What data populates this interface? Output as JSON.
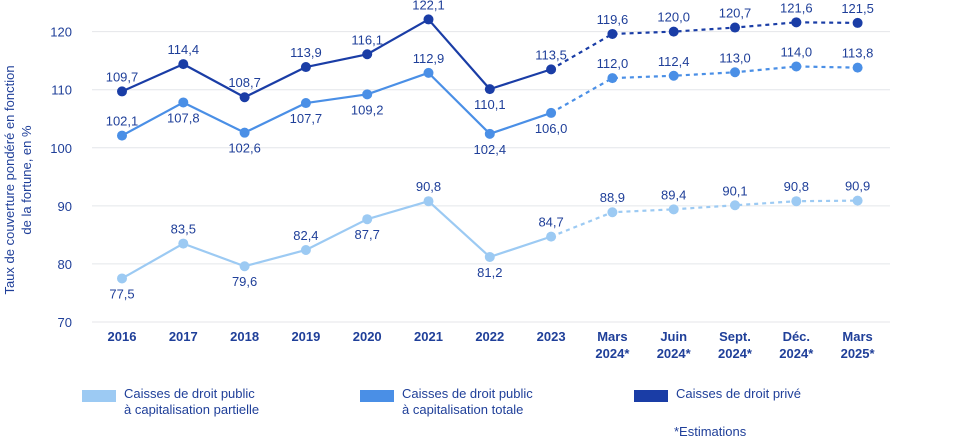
{
  "chart_data": {
    "type": "line",
    "ylabel": "Taux de couverture pondéré en fonction de la fortune, en %",
    "ylabel_lines": [
      "Taux de couverture pondéré en fonction",
      "de la fortune, en %"
    ],
    "ylim": [
      70,
      122
    ],
    "yticks": [
      70,
      80,
      90,
      100,
      110,
      120
    ],
    "grid": true,
    "categories": [
      "2016",
      "2017",
      "2018",
      "2019",
      "2020",
      "2021",
      "2022",
      "2023",
      "Mars 2024*",
      "Juin 2024*",
      "Sept. 2024*",
      "Déc. 2024*",
      "Mars 2025*"
    ],
    "category_lines": [
      [
        "2016"
      ],
      [
        "2017"
      ],
      [
        "2018"
      ],
      [
        "2019"
      ],
      [
        "2020"
      ],
      [
        "2021"
      ],
      [
        "2022"
      ],
      [
        "2023"
      ],
      [
        "Mars",
        "2024*"
      ],
      [
        "Juin",
        "2024*"
      ],
      [
        "Sept.",
        "2024*"
      ],
      [
        "Déc.",
        "2024*"
      ],
      [
        "Mars",
        "2025*"
      ]
    ],
    "estimate_start_index": 7,
    "series": [
      {
        "name": "Caisses de droit public à capitalisation partielle",
        "color": "#9ccaf3",
        "values": [
          77.5,
          83.5,
          79.6,
          82.4,
          87.7,
          90.8,
          81.2,
          84.7,
          88.9,
          89.4,
          90.1,
          90.8,
          90.9
        ],
        "labels": [
          "77,5",
          "83,5",
          "79,6",
          "82,4",
          "87,7",
          "90,8",
          "81,2",
          "84,7",
          "88,9",
          "89,4",
          "90,1",
          "90,8",
          "90,9"
        ],
        "label_pos": [
          "below",
          "above",
          "below",
          "above",
          "below",
          "above",
          "below",
          "above",
          "above",
          "above",
          "above",
          "above",
          "above"
        ]
      },
      {
        "name": "Caisses de droit public à capitalisation totale",
        "color": "#4a8fe6",
        "values": [
          102.1,
          107.8,
          102.6,
          107.7,
          109.2,
          112.9,
          102.4,
          106.0,
          112.0,
          112.4,
          113.0,
          114.0,
          113.8
        ],
        "labels": [
          "102,1",
          "107,8",
          "102,6",
          "107,7",
          "109,2",
          "112,9",
          "102,4",
          "106,0",
          "112,0",
          "112,4",
          "113,0",
          "114,0",
          "113,8"
        ],
        "label_pos": [
          "above",
          "below",
          "below",
          "below",
          "below",
          "above",
          "below",
          "below",
          "above",
          "above",
          "above",
          "above",
          "above"
        ]
      },
      {
        "name": "Caisses de droit privé",
        "color": "#1a3da6",
        "values": [
          109.7,
          114.4,
          108.7,
          113.9,
          116.1,
          122.1,
          110.1,
          113.5,
          119.6,
          120.0,
          120.7,
          121.6,
          121.5
        ],
        "labels": [
          "109,7",
          "114,4",
          "108,7",
          "113,9",
          "116,1",
          "122,1",
          "110,1",
          "113,5",
          "119,6",
          "120,0",
          "120,7",
          "121,6",
          "121,5"
        ],
        "label_pos": [
          "above",
          "above",
          "above",
          "above",
          "above",
          "above",
          "below",
          "above",
          "above",
          "above",
          "above",
          "above",
          "above"
        ]
      }
    ]
  },
  "legend": [
    {
      "text": "Caisses de droit public\nà capitalisation partielle",
      "color": "#9ccaf3"
    },
    {
      "text": "Caisses de droit public\nà capitalisation totale",
      "color": "#4a8fe6"
    },
    {
      "text": "Caisses de droit privé",
      "color": "#1a3da6"
    }
  ],
  "footnote": "*Estimations"
}
